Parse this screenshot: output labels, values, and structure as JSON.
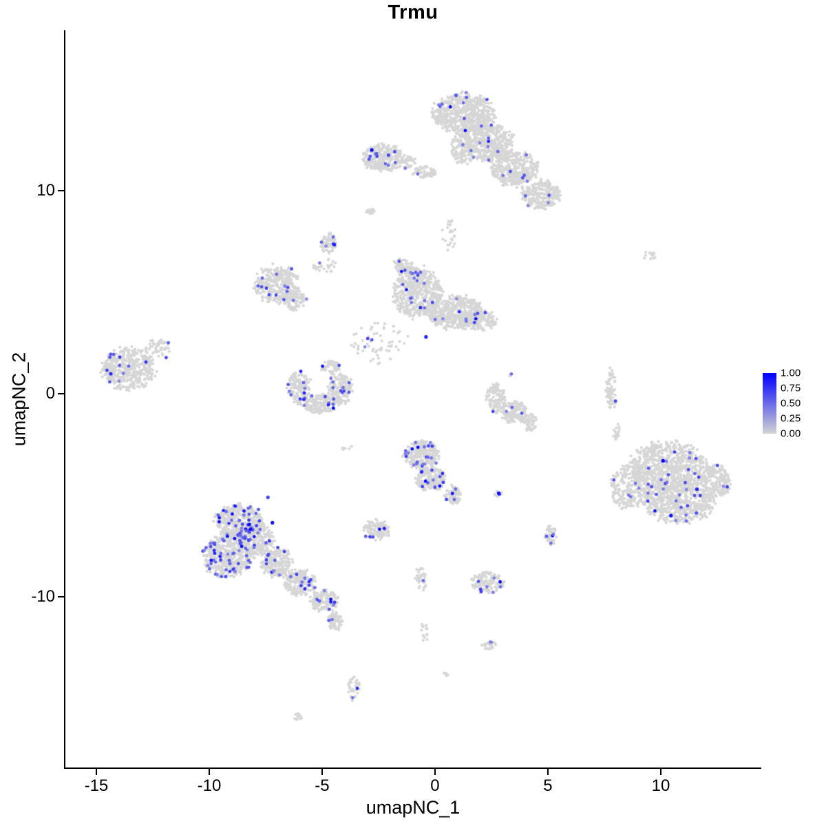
{
  "chart_data": {
    "type": "scatter",
    "title": "Trmu",
    "xlabel": "umapNC_1",
    "ylabel": "umapNC_2",
    "xlim": [
      -16.37,
      14.42
    ],
    "ylim": [
      -18.4,
      17.86
    ],
    "grid": false,
    "x_ticks": [
      {
        "label": "-15",
        "v": -15
      },
      {
        "label": "-10",
        "v": -10
      },
      {
        "label": "-5",
        "v": -5
      },
      {
        "label": "0",
        "v": 0
      },
      {
        "label": "5",
        "v": 5
      },
      {
        "label": "10",
        "v": 10
      }
    ],
    "y_ticks": [
      {
        "label": "10",
        "v": 10
      },
      {
        "label": "0",
        "v": 0
      },
      {
        "label": "-10",
        "v": -10
      }
    ],
    "legend": {
      "position": "right",
      "labels": [
        "1.00",
        "0.75",
        "0.50",
        "0.25",
        "0.00"
      ],
      "low_color": "#D3D3D3",
      "high_color": "#0000FF"
    },
    "point_base_color": "#D6D6D6",
    "cluster_fields": [
      "x",
      "y",
      "rx",
      "ry",
      "n",
      "expr_frac"
    ],
    "clusters": [
      [
        1.3,
        13.8,
        1.3,
        0.95,
        600,
        0.02
      ],
      [
        2.3,
        12.4,
        1.1,
        0.9,
        450,
        0.02
      ],
      [
        3.5,
        11.1,
        1.0,
        0.85,
        350,
        0.02
      ],
      [
        4.7,
        9.8,
        0.85,
        0.7,
        250,
        0.015
      ],
      [
        1.2,
        12.1,
        0.5,
        0.8,
        120,
        0.02
      ],
      [
        0.6,
        7.8,
        0.3,
        0.8,
        25,
        0
      ],
      [
        -2.3,
        11.6,
        0.9,
        0.65,
        280,
        0.04
      ],
      [
        -1.2,
        11.4,
        0.35,
        0.3,
        45,
        0.02
      ],
      [
        -0.5,
        10.9,
        0.5,
        0.3,
        60,
        0.02
      ],
      [
        -2.9,
        9.0,
        0.2,
        0.15,
        12,
        0
      ],
      [
        -4.7,
        7.4,
        0.35,
        0.5,
        60,
        0.1
      ],
      [
        -4.9,
        6.3,
        0.5,
        0.4,
        25,
        0.04
      ],
      [
        -7.0,
        5.4,
        0.95,
        0.9,
        300,
        0.04
      ],
      [
        -6.2,
        4.6,
        0.5,
        0.5,
        80,
        0.03
      ],
      [
        -0.8,
        5.0,
        1.05,
        1.2,
        500,
        0.035
      ],
      [
        0.9,
        4.0,
        1.2,
        0.8,
        450,
        0.02
      ],
      [
        2.0,
        3.6,
        0.7,
        0.5,
        150,
        0.02
      ],
      [
        -1.4,
        6.3,
        0.45,
        0.4,
        60,
        0.03
      ],
      [
        -2.5,
        2.5,
        1.2,
        1.1,
        60,
        0.05
      ],
      [
        -6.0,
        0.3,
        0.5,
        0.8,
        150,
        0.06
      ],
      [
        -5.1,
        -0.5,
        0.7,
        0.45,
        160,
        0.06
      ],
      [
        -4.2,
        0.2,
        0.5,
        0.8,
        150,
        0.06
      ],
      [
        -4.6,
        1.3,
        0.45,
        0.35,
        50,
        0.04
      ],
      [
        -13.6,
        1.2,
        1.15,
        1.0,
        450,
        0.03
      ],
      [
        -12.3,
        2.2,
        0.6,
        0.5,
        50,
        0.02
      ],
      [
        7.8,
        0.2,
        0.25,
        0.95,
        70,
        0.01
      ],
      [
        8.0,
        -1.8,
        0.2,
        0.4,
        22,
        0
      ],
      [
        9.5,
        6.8,
        0.3,
        0.2,
        12,
        0
      ],
      [
        2.7,
        -0.2,
        0.4,
        0.7,
        110,
        0.01
      ],
      [
        3.5,
        -0.9,
        0.55,
        0.55,
        150,
        0.02
      ],
      [
        4.2,
        -1.4,
        0.3,
        0.4,
        60,
        0
      ],
      [
        -0.6,
        -3.0,
        0.75,
        0.65,
        260,
        0.08
      ],
      [
        -0.2,
        -4.2,
        0.6,
        0.6,
        200,
        0.06
      ],
      [
        0.8,
        -5.0,
        0.35,
        0.45,
        70,
        0.06
      ],
      [
        -0.6,
        -9.0,
        0.25,
        0.8,
        35,
        0.02
      ],
      [
        -0.5,
        -11.8,
        0.2,
        0.5,
        14,
        0
      ],
      [
        0.5,
        -13.8,
        0.15,
        0.1,
        4,
        0
      ],
      [
        2.8,
        -4.9,
        0.25,
        0.15,
        8,
        0.15
      ],
      [
        10.3,
        -3.6,
        1.6,
        1.2,
        700,
        0.02
      ],
      [
        10.8,
        -5.3,
        1.5,
        1.0,
        600,
        0.03
      ],
      [
        8.6,
        -4.6,
        0.85,
        1.0,
        250,
        0.02
      ],
      [
        12.4,
        -4.3,
        0.7,
        0.8,
        200,
        0.015
      ],
      [
        -8.7,
        -6.3,
        1.0,
        0.9,
        400,
        0.1
      ],
      [
        -9.2,
        -8.0,
        1.05,
        1.0,
        450,
        0.11
      ],
      [
        -8.0,
        -7.2,
        0.8,
        0.8,
        300,
        0.08
      ],
      [
        -7.0,
        -8.3,
        0.65,
        0.7,
        200,
        0.06
      ],
      [
        -6.0,
        -9.3,
        0.7,
        0.6,
        200,
        0.05
      ],
      [
        -4.9,
        -10.2,
        0.6,
        0.5,
        150,
        0.06
      ],
      [
        -4.4,
        -11.2,
        0.3,
        0.5,
        60,
        0.04
      ],
      [
        -2.6,
        -6.7,
        0.6,
        0.5,
        120,
        0.05
      ],
      [
        2.3,
        -9.3,
        0.7,
        0.5,
        130,
        0.06
      ],
      [
        5.1,
        -7.0,
        0.25,
        0.5,
        50,
        0.08
      ],
      [
        2.4,
        -12.4,
        0.3,
        0.2,
        25,
        0.06
      ],
      [
        -3.6,
        -14.5,
        0.25,
        0.6,
        35,
        0.06
      ],
      [
        -6.1,
        -15.9,
        0.25,
        0.15,
        10,
        0
      ],
      [
        3.4,
        0.9,
        0.12,
        0.1,
        3,
        0.4
      ],
      [
        -3.9,
        -2.6,
        0.3,
        0.2,
        6,
        0
      ],
      [
        -11.9,
        2.5,
        0.15,
        0.1,
        3,
        0.4
      ]
    ],
    "high_point_fields": [
      "x",
      "y",
      "value"
    ],
    "high_points": [
      [
        -2.8,
        12.0,
        1.0
      ],
      [
        -7.2,
        -6.35,
        0.95
      ],
      [
        10.1,
        -3.3,
        1.0
      ],
      [
        10.45,
        -6.0,
        0.95
      ],
      [
        11.6,
        -4.7,
        0.85
      ],
      [
        2.82,
        -4.9,
        0.95
      ],
      [
        -0.4,
        2.8,
        0.85
      ],
      [
        -7.4,
        -5.1,
        0.7
      ]
    ]
  }
}
